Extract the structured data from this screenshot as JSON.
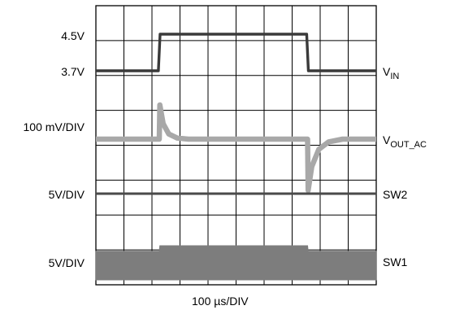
{
  "chart_data": {
    "type": "line",
    "title": "",
    "xlabel": "100 µs/DIV",
    "grid": true,
    "grid_divisions": {
      "x": 10,
      "y": 8
    },
    "x_unit": "µs",
    "x_range": [
      0,
      1000
    ],
    "channel_labels": {
      "vin_high": "4.5V",
      "vin_low": "3.7V",
      "vout_scale": "100 mV/DIV",
      "sw2_scale": "5V/DIV",
      "sw1_scale": "5V/DIV"
    },
    "series": [
      {
        "name": "VIN",
        "name_main": "V",
        "name_sub": "IN",
        "color": "#3a3a3a",
        "unit": "V",
        "points": [
          [
            0,
            3.7
          ],
          [
            223,
            3.7
          ],
          [
            229,
            4.5
          ],
          [
            752,
            4.5
          ],
          [
            758,
            3.7
          ],
          [
            1000,
            3.7
          ]
        ]
      },
      {
        "name": "VOUT_AC",
        "name_main": "V",
        "name_sub": "OUT_AC",
        "color": "#a8a8a8",
        "unit": "mV",
        "points": [
          [
            0,
            0
          ],
          [
            226,
            0
          ],
          [
            228,
            100
          ],
          [
            240,
            45
          ],
          [
            260,
            15
          ],
          [
            290,
            3
          ],
          [
            330,
            0
          ],
          [
            755,
            0
          ],
          [
            757,
            -150
          ],
          [
            770,
            -80
          ],
          [
            795,
            -30
          ],
          [
            830,
            -8
          ],
          [
            880,
            0
          ],
          [
            1000,
            0
          ]
        ]
      },
      {
        "name": "SW2",
        "name_main": "SW2",
        "name_sub": "",
        "color": "#4a4a4a",
        "unit": "V",
        "points": [
          [
            0,
            5
          ],
          [
            1000,
            5
          ]
        ]
      },
      {
        "name": "SW1",
        "name_main": "SW1",
        "name_sub": "",
        "color": "#7d7d7d",
        "unit": "V",
        "points": [
          [
            0,
            4.2
          ],
          [
            226,
            4.2
          ],
          [
            228,
            5
          ],
          [
            755,
            5
          ],
          [
            757,
            4.2
          ],
          [
            1000,
            4.2
          ]
        ],
        "note": "switching between high and 0 V; appears as filled band"
      }
    ]
  }
}
